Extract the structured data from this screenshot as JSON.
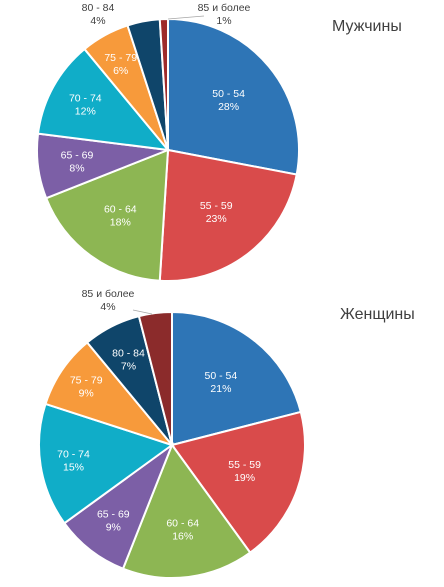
{
  "chart_data": [
    {
      "type": "pie",
      "title": "Мужчины",
      "slices": [
        {
          "label": "50 - 54",
          "value": 28,
          "display": "28%",
          "color": "#2E75B6"
        },
        {
          "label": "55 - 59",
          "value": 23,
          "display": "23%",
          "color": "#D94B4B"
        },
        {
          "label": "60 - 64",
          "value": 18,
          "display": "18%",
          "color": "#8DB653"
        },
        {
          "label": "65 - 69",
          "value": 8,
          "display": "8%",
          "color": "#7C5FA6"
        },
        {
          "label": "70 - 74",
          "value": 12,
          "display": "12%",
          "color": "#10ADC8"
        },
        {
          "label": "75 - 79",
          "value": 6,
          "display": "6%",
          "color": "#F79A3B"
        },
        {
          "label": "80 - 84",
          "value": 4,
          "display": "4%",
          "color": "#0F456A"
        },
        {
          "label": "85 и более",
          "value": 1,
          "display": "1%",
          "color": "#9E2B2B"
        }
      ]
    },
    {
      "type": "pie",
      "title": "Женщины",
      "slices": [
        {
          "label": "50 - 54",
          "value": 21,
          "display": "21%",
          "color": "#2E75B6"
        },
        {
          "label": "55 - 59",
          "value": 19,
          "display": "19%",
          "color": "#D94B4B"
        },
        {
          "label": "60 - 64",
          "value": 16,
          "display": "16%",
          "color": "#8DB653"
        },
        {
          "label": "65 - 69",
          "value": 9,
          "display": "9%",
          "color": "#7C5FA6"
        },
        {
          "label": "70 - 74",
          "value": 15,
          "display": "15%",
          "color": "#10ADC8"
        },
        {
          "label": "75 - 79",
          "value": 9,
          "display": "9%",
          "color": "#F79A3B"
        },
        {
          "label": "80 - 84",
          "value": 7,
          "display": "7%",
          "color": "#0F456A"
        },
        {
          "label": "85 и более",
          "value": 4,
          "display": "4%",
          "color": "#8B2B2B"
        }
      ]
    }
  ]
}
